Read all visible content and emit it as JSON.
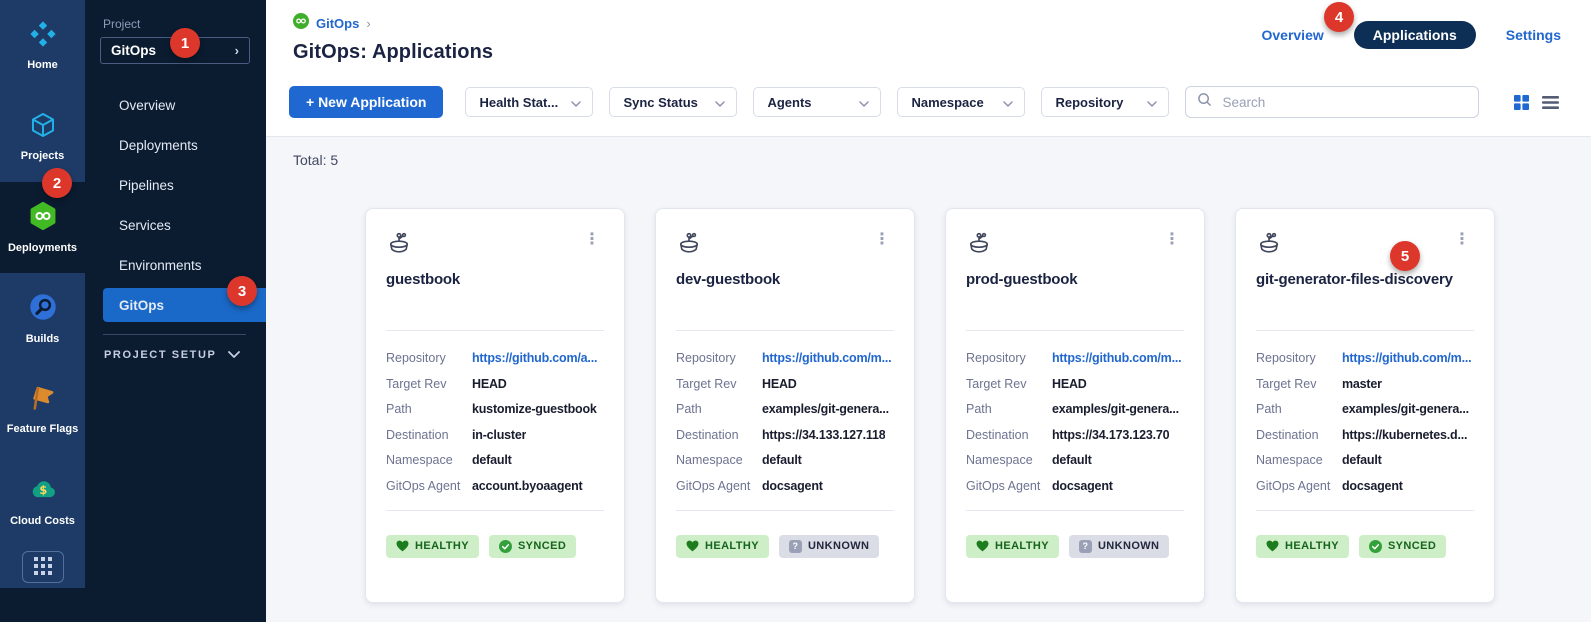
{
  "colors": {
    "accent_blue": "#1f68d2",
    "link_blue": "#2167ce",
    "rail_background": "#1d3b66",
    "sidebar_background": "#0b1c31",
    "selected_nav_blue": "#1a69c8",
    "module_green": "#42ba24",
    "healthy_green": "#16641d",
    "badge_green_background": "#cdeec6",
    "unknown_badge_background": "#dadce6",
    "annotation_red": "#dc372a",
    "content_background": "#f4f6fa",
    "tab_pill_navy": "#0d2f55"
  },
  "rail": {
    "modules": [
      {
        "label": "Home",
        "icon": "home-icon",
        "active": false
      },
      {
        "label": "Projects",
        "icon": "projects-icon",
        "active": false
      },
      {
        "label": "Deployments",
        "icon": "deployments-icon",
        "active": true
      },
      {
        "label": "Builds",
        "icon": "builds-icon",
        "active": false
      },
      {
        "label": "Feature Flags",
        "icon": "feature-flags-icon",
        "active": false
      },
      {
        "label": "Cloud Costs",
        "icon": "cloud-costs-icon",
        "active": false
      }
    ]
  },
  "project_nav": {
    "project_label": "Project",
    "project_name": "GitOps",
    "chevron": "›",
    "items": [
      {
        "label": "Overview",
        "active": false
      },
      {
        "label": "Deployments",
        "active": false
      },
      {
        "label": "Pipelines",
        "active": false
      },
      {
        "label": "Services",
        "active": false
      },
      {
        "label": "Environments",
        "active": false
      },
      {
        "label": "GitOps",
        "active": true
      }
    ],
    "section_label": "PROJECT SETUP"
  },
  "header": {
    "breadcrumb_label": "GitOps",
    "breadcrumb_chevron": "›",
    "title": "GitOps: Applications",
    "tabs": [
      {
        "label": "Overview",
        "active": false
      },
      {
        "label": "Applications",
        "active": true
      },
      {
        "label": "Settings",
        "active": false
      }
    ]
  },
  "toolbar": {
    "new_application_label": "+ New Application",
    "filters": [
      "Health Stat...",
      "Sync Status",
      "Agents",
      "Namespace",
      "Repository"
    ],
    "search_placeholder": "Search"
  },
  "content": {
    "total_label": "Total: 5",
    "cards": [
      {
        "name": "guestbook",
        "fields": [
          {
            "label": "Repository",
            "value": "https://github.com/a...",
            "link": true
          },
          {
            "label": "Target Rev",
            "value": "HEAD",
            "link": false
          },
          {
            "label": "Path",
            "value": "kustomize-guestbook",
            "link": false
          },
          {
            "label": "Destination",
            "value": "in-cluster",
            "link": false
          },
          {
            "label": "Namespace",
            "value": "default",
            "link": false
          },
          {
            "label": "GitOps Agent",
            "value": "account.byoaagent",
            "link": false
          }
        ],
        "badges": [
          {
            "label": "HEALTHY",
            "type": "healthy",
            "icon": "heart-icon"
          },
          {
            "label": "SYNCED",
            "type": "synced",
            "icon": "check-circle-icon"
          }
        ]
      },
      {
        "name": "dev-guestbook",
        "fields": [
          {
            "label": "Repository",
            "value": "https://github.com/m...",
            "link": true
          },
          {
            "label": "Target Rev",
            "value": "HEAD",
            "link": false
          },
          {
            "label": "Path",
            "value": "examples/git-genera...",
            "link": false
          },
          {
            "label": "Destination",
            "value": "https://34.133.127.118",
            "link": false
          },
          {
            "label": "Namespace",
            "value": "default",
            "link": false
          },
          {
            "label": "GitOps Agent",
            "value": "docsagent",
            "link": false
          }
        ],
        "badges": [
          {
            "label": "HEALTHY",
            "type": "healthy",
            "icon": "heart-icon"
          },
          {
            "label": "UNKNOWN",
            "type": "unknown",
            "icon": "question-square-icon"
          }
        ]
      },
      {
        "name": "prod-guestbook",
        "fields": [
          {
            "label": "Repository",
            "value": "https://github.com/m...",
            "link": true
          },
          {
            "label": "Target Rev",
            "value": "HEAD",
            "link": false
          },
          {
            "label": "Path",
            "value": "examples/git-genera...",
            "link": false
          },
          {
            "label": "Destination",
            "value": "https://34.173.123.70",
            "link": false
          },
          {
            "label": "Namespace",
            "value": "default",
            "link": false
          },
          {
            "label": "GitOps Agent",
            "value": "docsagent",
            "link": false
          }
        ],
        "badges": [
          {
            "label": "HEALTHY",
            "type": "healthy",
            "icon": "heart-icon"
          },
          {
            "label": "UNKNOWN",
            "type": "unknown",
            "icon": "question-square-icon"
          }
        ]
      },
      {
        "name": "git-generator-files-discovery",
        "fields": [
          {
            "label": "Repository",
            "value": "https://github.com/m...",
            "link": true
          },
          {
            "label": "Target Rev",
            "value": "master",
            "link": false
          },
          {
            "label": "Path",
            "value": "examples/git-genera...",
            "link": false
          },
          {
            "label": "Destination",
            "value": "https://kubernetes.d...",
            "link": false
          },
          {
            "label": "Namespace",
            "value": "default",
            "link": false
          },
          {
            "label": "GitOps Agent",
            "value": "docsagent",
            "link": false
          }
        ],
        "badges": [
          {
            "label": "HEALTHY",
            "type": "healthy",
            "icon": "heart-icon"
          },
          {
            "label": "SYNCED",
            "type": "synced",
            "icon": "check-circle-icon"
          }
        ]
      }
    ]
  },
  "annotations": [
    {
      "label": "1"
    },
    {
      "label": "2"
    },
    {
      "label": "3"
    },
    {
      "label": "4"
    },
    {
      "label": "5"
    }
  ]
}
